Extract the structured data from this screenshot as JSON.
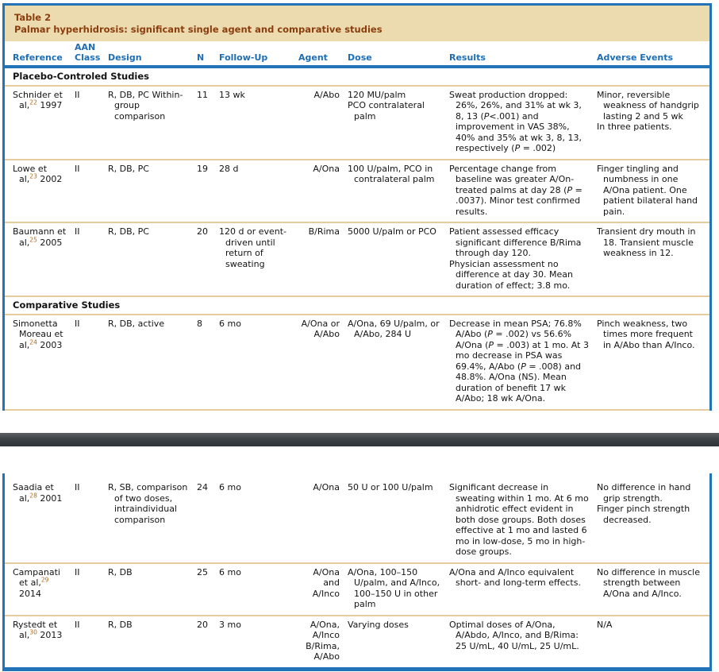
{
  "colors": {
    "accent_blue": "#2273B8",
    "header_blue": "#1E6EB5",
    "band_bg": "#EDDBB0",
    "band_text": "#8A3E0E",
    "rule_tan": "#E5CB9E",
    "divider_dark": "#3E4347",
    "sup_brown": "#B26B1D",
    "text": "#141414"
  },
  "table": {
    "label": "Table 2",
    "title": "Palmar hyperhidrosis: significant single agent and comparative studies",
    "columns": [
      "Reference",
      "AAN\nClass",
      "Design",
      "N",
      "Follow-Up",
      "Agent",
      "Dose",
      "Results",
      "Adverse Events"
    ],
    "rows_top": [
      {
        "type": "section",
        "label": "Placebo-Controled Studies"
      },
      {
        "type": "study",
        "cells": [
          "Schnider et al,^22^ 1997",
          "II",
          "R, DB, PC Within-group comparison",
          "11",
          "13 wk",
          "A/Abo",
          "120 MU/palm\nPCO contralateral palm",
          "Sweat production dropped: 26%, 26%, and 31% at wk 3, 8, 13 (_P_<.001) and improvement in VAS 38%, 40% and 35% at wk 3, 8, 13, respectively (_P_ = .002)",
          "Minor, reversible weakness of handgrip lasting 2 and 5 wk\nIn three patients."
        ]
      },
      {
        "type": "study",
        "cells": [
          "Lowe et al,^23^ 2002",
          "II",
          "R, DB, PC",
          "19",
          "28 d",
          "A/Ona",
          "100 U/palm, PCO in contralateral palm",
          "Percentage change from baseline was greater A/On-treated palms at day 28 (_P_ = .0037). Minor test confirmed results.",
          "Finger tingling and numbness in one A/Ona patient. One patient bilateral hand pain."
        ]
      },
      {
        "type": "study",
        "cells": [
          "Baumann et al,^25^ 2005",
          "II",
          "R, DB, PC",
          "20",
          "120 d or event-driven until return of sweating",
          "B/Rima",
          "5000 U/palm or PCO",
          "Patient assessed efficacy significant difference B/Rima through day 120.\nPhysician assessment no difference at day 30. Mean duration of effect; 3.8 mo.",
          "Transient dry mouth in 18. Transient muscle weakness in 12."
        ]
      },
      {
        "type": "section",
        "label": "Comparative Studies"
      },
      {
        "type": "study",
        "cells": [
          "Simonetta Moreau et al,^24^ 2003",
          "II",
          "R, DB, active",
          "8",
          "6 mo",
          "A/Ona or\nA/Abo",
          "A/Ona, 69 U/palm, or A/Abo, 284 U",
          "Decrease in mean PSA; 76.8% A/Abo (_P_ = .002) vs 56.6% A/Ona (_P_ = .003) at 1 mo. At 3 mo decrease in PSA was 69.4%, A/Abo (_P_ = .008) and 48.8%. A/Ona (NS). Mean duration of benefit 17 wk A/Abo; 18 wk A/Ona.",
          "Pinch weakness, two times more frequent in A/Abo than A/Inco."
        ]
      }
    ],
    "rows_bottom": [
      {
        "type": "study",
        "cells": [
          "Saadia et al,^28^ 2001",
          "II",
          "R, SB, comparison of two doses, intraindividual comparison",
          "24",
          "6 mo",
          "A/Ona",
          "50 U or 100 U/palm",
          "Significant decrease in sweating within 1 mo. At 6 mo anhidrotic effect evident in both dose groups. Both doses effective at 1 mo and lasted 6 mo in low-dose, 5 mo in high-dose groups.",
          "No difference in hand grip strength.\nFinger pinch strength decreased."
        ]
      },
      {
        "type": "study",
        "cells": [
          "Campanati et al,^29^ 2014",
          "II",
          "R, DB",
          "25",
          "6 mo",
          "A/Ona\nand\nA/Inco",
          "A/Ona, 100–150 U/palm, and A/Inco, 100–150 U in other palm",
          "A/Ona and A/Inco equivalent short- and long-term effects.",
          "No difference in muscle strength between A/Ona and A/Inco."
        ]
      },
      {
        "type": "study",
        "cells": [
          "Rystedt et al,^30^ 2013",
          "II",
          "R, DB",
          "20",
          "3 mo",
          "A/Ona,\nA/Inco\nB/Rima,\nA/Abo",
          "Varying doses",
          "Optimal doses of A/Ona, A/Abdo, A/Inco, and B/Rima: 25 U/mL, 40 U/mL, 25 U/mL.",
          "N/A"
        ]
      }
    ]
  }
}
